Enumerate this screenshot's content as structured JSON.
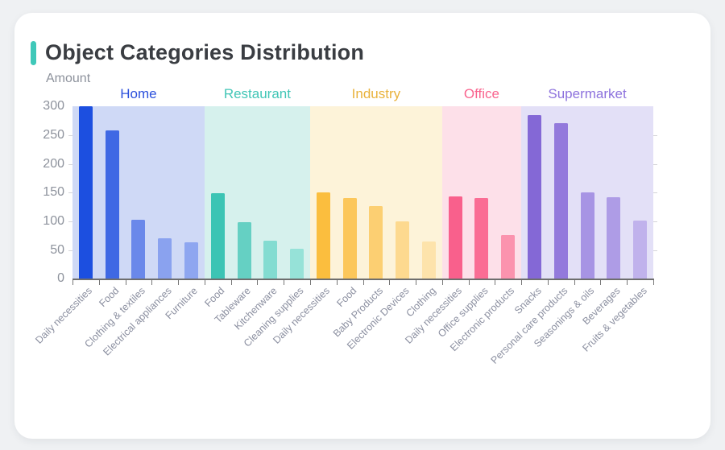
{
  "card": {
    "title": "Object Categories Distribution",
    "accent_color": "#3fc8b9"
  },
  "chart_data": {
    "type": "bar",
    "title": "Object Categories Distribution",
    "xlabel": "",
    "ylabel": "Amount",
    "ylim": [
      0,
      300
    ],
    "y_ticks": [
      0,
      50,
      100,
      150,
      200,
      250,
      300
    ],
    "grid": false,
    "group_label_position": "top",
    "groups": [
      {
        "name": "Home",
        "label_color": "#2b50dc",
        "background": "#cfd9f6",
        "bars": [
          {
            "label": "Daily necessities",
            "value": 300,
            "color": "#1c4fe0"
          },
          {
            "label": "Food",
            "value": 259,
            "color": "#3f68e4"
          },
          {
            "label": "Clothing & textiles",
            "value": 103,
            "color": "#6a88ea"
          },
          {
            "label": "Electrical appliances",
            "value": 70,
            "color": "#8aa2ef"
          },
          {
            "label": "Furniture",
            "value": 64,
            "color": "#8ea6f0"
          }
        ]
      },
      {
        "name": "Restaurant",
        "label_color": "#41c6b6",
        "background": "#d6f1ed",
        "bars": [
          {
            "label": "Food",
            "value": 149,
            "color": "#3cc4b4"
          },
          {
            "label": "Tableware",
            "value": 98,
            "color": "#65d0c3"
          },
          {
            "label": "Kitchenware",
            "value": 66,
            "color": "#83dcd1"
          },
          {
            "label": "Cleaning supplies",
            "value": 52,
            "color": "#96e2d8"
          }
        ]
      },
      {
        "name": "Industry",
        "label_color": "#e9b23c",
        "background": "#fdf3d9",
        "bars": [
          {
            "label": "Daily necessities",
            "value": 151,
            "color": "#fbbe3e"
          },
          {
            "label": "Food",
            "value": 140,
            "color": "#fcc75b"
          },
          {
            "label": "Baby Products",
            "value": 127,
            "color": "#fccf72"
          },
          {
            "label": "Electronic Devices",
            "value": 100,
            "color": "#fdd98f"
          },
          {
            "label": "Clothing",
            "value": 65,
            "color": "#fde3ab"
          }
        ]
      },
      {
        "name": "Office",
        "label_color": "#f9648e",
        "background": "#fde0e9",
        "bars": [
          {
            "label": "Daily necessities",
            "value": 144,
            "color": "#f9608c"
          },
          {
            "label": "Office supplies",
            "value": 140,
            "color": "#fa6d94"
          },
          {
            "label": "Electronic products",
            "value": 76,
            "color": "#fb93ae"
          }
        ]
      },
      {
        "name": "Supermarket",
        "label_color": "#8d72dd",
        "background": "#e3e0f7",
        "bars": [
          {
            "label": "Snacks",
            "value": 285,
            "color": "#8468d6"
          },
          {
            "label": "Personal care products",
            "value": 271,
            "color": "#9379dc"
          },
          {
            "label": "Seasonings & oils",
            "value": 151,
            "color": "#a794e4"
          },
          {
            "label": "Beverages",
            "value": 142,
            "color": "#ae9ce6"
          },
          {
            "label": "Fruits & vegetables",
            "value": 102,
            "color": "#c0b2ec"
          }
        ]
      }
    ]
  }
}
